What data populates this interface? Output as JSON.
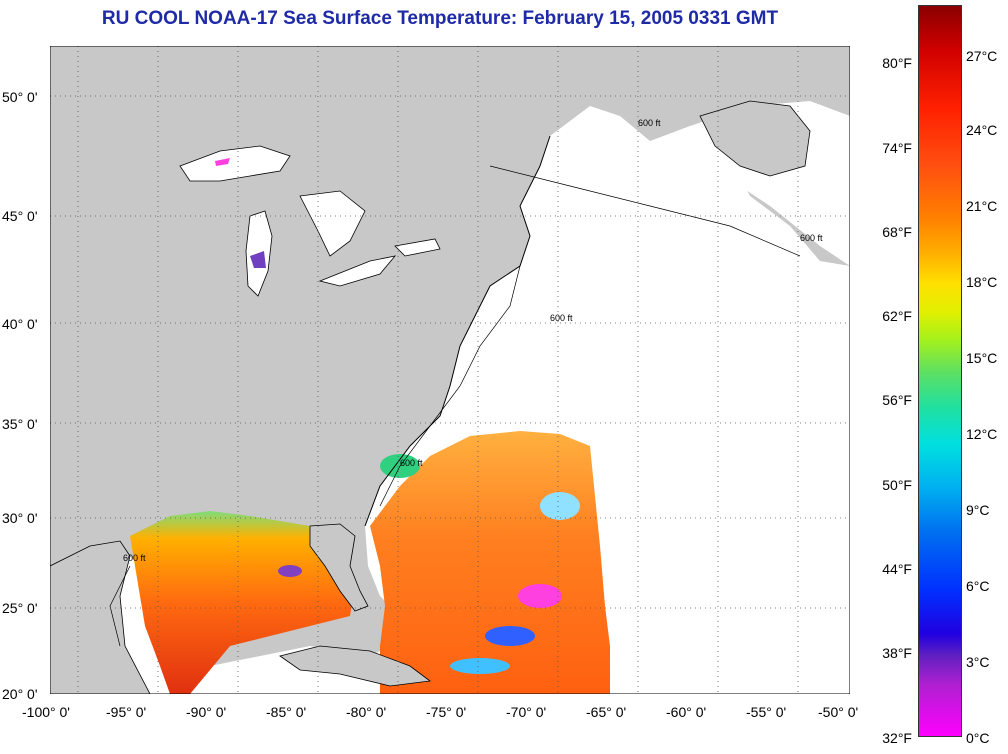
{
  "title": "RU COOL  NOAA-17  Sea Surface Temperature:  February 15, 2005 0331 GMT",
  "lat_labels": [
    "50° 0'",
    "45° 0'",
    "40° 0'",
    "35° 0'",
    "30° 0'",
    "25° 0'",
    "20° 0'"
  ],
  "lon_labels": [
    "-100° 0'",
    "-95° 0'",
    "-90° 0'",
    "-85° 0'",
    "-80° 0'",
    "-75° 0'",
    "-70° 0'",
    "-65° 0'",
    "-60° 0'",
    "-55° 0'",
    "-50° 0'"
  ],
  "contour_label": "600 ft",
  "colorbar": {
    "fahrenheit": [
      "80°F",
      "74°F",
      "68°F",
      "62°F",
      "56°F",
      "50°F",
      "44°F",
      "38°F",
      "32°F"
    ],
    "celsius": [
      "27°C",
      "24°C",
      "21°C",
      "18°C",
      "15°C",
      "12°C",
      "9°C",
      "6°C",
      "3°C",
      "0°C"
    ]
  },
  "colors": {
    "land": "#c8c8c8",
    "ocean_nodata": "#ffffff",
    "title": "#1f2aa8",
    "warm": "#e8401a",
    "cold": "#ff40e0"
  }
}
